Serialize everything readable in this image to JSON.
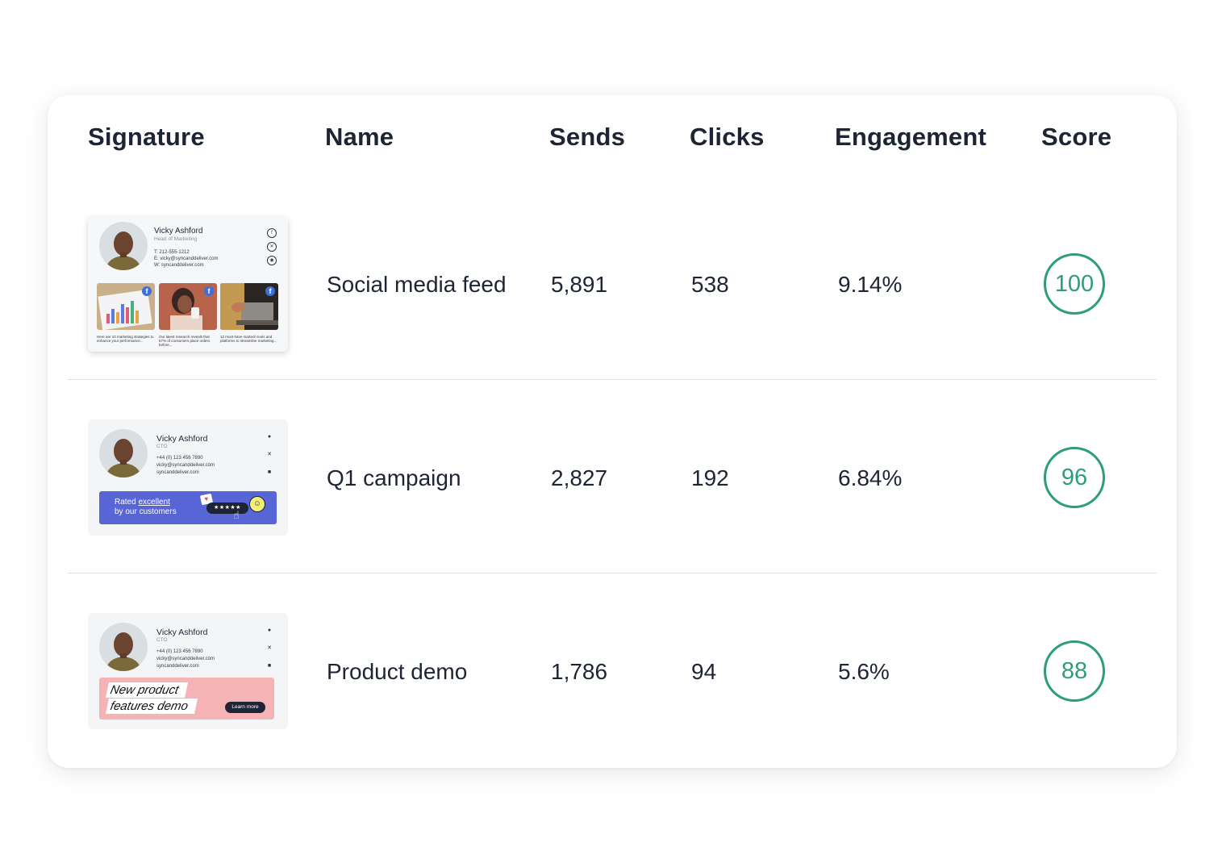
{
  "table": {
    "headers": [
      "Signature",
      "Name",
      "Sends",
      "Clicks",
      "Engagement",
      "Score"
    ],
    "rows": [
      {
        "name": "Social media feed",
        "sends": "5,891",
        "clicks": "538",
        "engagement": "9.14%",
        "score": "100"
      },
      {
        "name": "Q1 campaign",
        "sends": "2,827",
        "clicks": "192",
        "engagement": "6.84%",
        "score": "96"
      },
      {
        "name": "Product demo",
        "sends": "1,786",
        "clicks": "94",
        "engagement": "5.6%",
        "score": "88"
      }
    ]
  },
  "signatures": {
    "sig1": {
      "name": "Vicky Ashford",
      "role": "Head of Marketing",
      "phone": "T:  212-555-1212",
      "email": "E:  vicky@syncanddeliver.com",
      "web": "W: syncanddeliver.com",
      "captions": [
        "Here are 10 marketing strategies to enhance your performance...",
        "Our latest research reveals that 57% of consumers place orders before...",
        "12 must-have martech tools and platforms to streamline marketing..."
      ]
    },
    "sig2": {
      "name": "Vicky Ashford",
      "role": "CTO",
      "phone": "+44 (0) 123 456 7890",
      "email": "vicky@syncanddeliver.com",
      "web": "syncanddeliver.com",
      "banner_prefix": "Rated ",
      "banner_link": "excellent",
      "banner_line2": "by our customers",
      "stars": "★★★★★"
    },
    "sig3": {
      "name": "Vicky Ashford",
      "role": "CTO",
      "phone": "+44 (0) 123 456 7890",
      "email": "vicky@syncanddeliver.com",
      "web": "syncanddeliver.com",
      "banner_line1": "New product",
      "banner_line2": "features demo",
      "cta": "Learn more"
    }
  },
  "colors": {
    "score_accent": "#2f9c7e",
    "banner_blue": "#5865d6",
    "banner_pink": "#f5b3b5",
    "facebook": "#3d6fd9"
  }
}
